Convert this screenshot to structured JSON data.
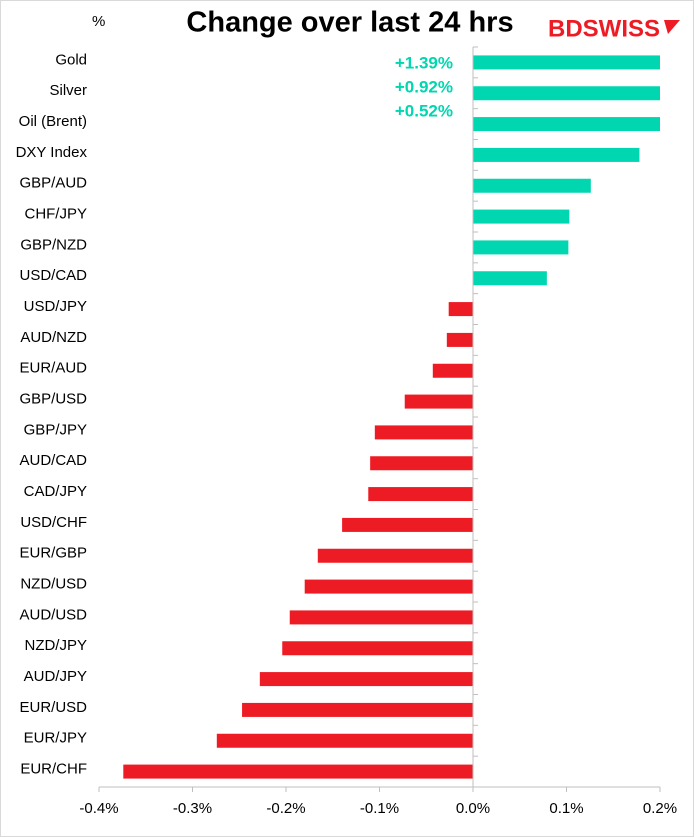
{
  "chart_data": {
    "type": "barh",
    "title": "Change over last 24 hrs",
    "unit_label": "%",
    "logo": "BDSWISS",
    "categories": [
      "Gold",
      "Silver",
      "Oil (Brent)",
      "DXY Index",
      "GBP/AUD",
      "CHF/JPY",
      "GBP/NZD",
      "USD/CAD",
      "USD/JPY",
      "AUD/NZD",
      "EUR/AUD",
      "GBP/USD",
      "GBP/JPY",
      "AUD/CAD",
      "CAD/JPY",
      "USD/CHF",
      "EUR/GBP",
      "NZD/USD",
      "AUD/USD",
      "NZD/JPY",
      "AUD/JPY",
      "EUR/USD",
      "EUR/JPY",
      "EUR/CHF"
    ],
    "values": [
      1.39,
      0.92,
      0.52,
      0.178,
      0.126,
      0.103,
      0.102,
      0.079,
      -0.026,
      -0.028,
      -0.043,
      -0.073,
      -0.105,
      -0.11,
      -0.112,
      -0.14,
      -0.166,
      -0.18,
      -0.196,
      -0.204,
      -0.228,
      -0.247,
      -0.274,
      -0.374
    ],
    "value_labels": [
      "+1.39%",
      "+0.92%",
      "+0.52%",
      null,
      null,
      null,
      null,
      null,
      null,
      null,
      null,
      null,
      null,
      null,
      null,
      null,
      null,
      null,
      null,
      null,
      null,
      null,
      null,
      null
    ],
    "color_positive": "#00d6b0",
    "color_negative": "#ed1c24",
    "xlim": [
      -0.4,
      0.2
    ],
    "xticks": [
      {
        "value": -0.4,
        "label": "-0.4%"
      },
      {
        "value": -0.3,
        "label": "-0.3%"
      },
      {
        "value": -0.2,
        "label": "-0.2%"
      },
      {
        "value": -0.1,
        "label": "-0.1%"
      },
      {
        "value": 0,
        "label": "0.0%"
      },
      {
        "value": 0.1,
        "label": "0.1%"
      },
      {
        "value": 0.2,
        "label": "0.2%"
      }
    ],
    "grid": false
  }
}
